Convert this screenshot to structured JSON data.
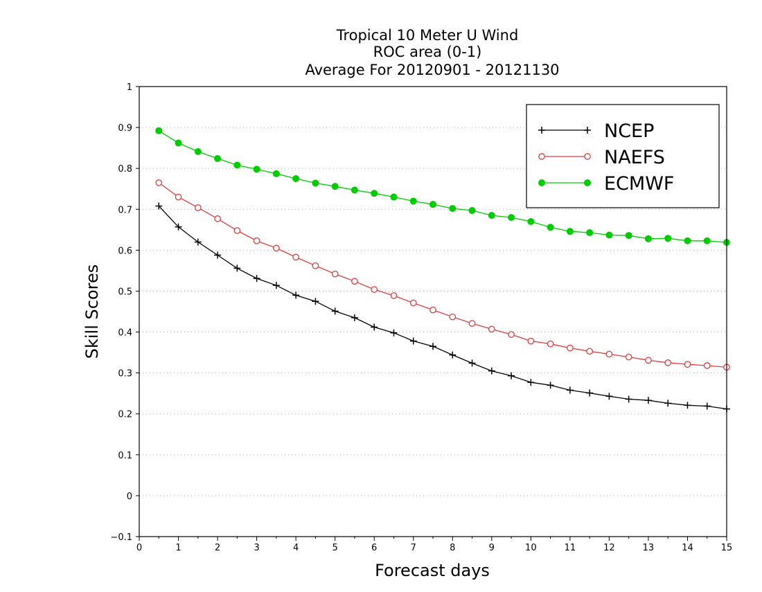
{
  "chart_data": {
    "type": "line",
    "title": [
      "Tropical 10 Meter U Wind",
      "ROC area (0-1)",
      "Average For 20120901 - 20121130"
    ],
    "xlabel": "Forecast days",
    "ylabel": "Skill Scores",
    "xlim": [
      0,
      15
    ],
    "ylim": [
      -0.1,
      1
    ],
    "xticks": [
      "0",
      "1",
      "2",
      "3",
      "4",
      "5",
      "6",
      "7",
      "8",
      "9",
      "10",
      "11",
      "12",
      "13",
      "14",
      "15"
    ],
    "yticks": [
      "−0.1",
      "0",
      "0.1",
      "0.2",
      "0.3",
      "0.4",
      "0.5",
      "0.6",
      "0.7",
      "0.8",
      "0.9",
      "1"
    ],
    "grid": "horizontal dotted",
    "legend_position": "top-right",
    "x": [
      0.5,
      1,
      1.5,
      2,
      2.5,
      3,
      3.5,
      4,
      4.5,
      5,
      5.5,
      6,
      6.5,
      7,
      7.5,
      8,
      8.5,
      9,
      9.5,
      10,
      10.5,
      11,
      11.5,
      12,
      12.5,
      13,
      13.5,
      14,
      14.5,
      15
    ],
    "series": [
      {
        "name": "NCEP",
        "color": "#000000",
        "marker": "plus",
        "values": [
          0.708,
          0.657,
          0.62,
          0.588,
          0.556,
          0.531,
          0.514,
          0.49,
          0.475,
          0.451,
          0.435,
          0.412,
          0.398,
          0.378,
          0.365,
          0.344,
          0.324,
          0.305,
          0.293,
          0.277,
          0.27,
          0.258,
          0.251,
          0.243,
          0.236,
          0.233,
          0.226,
          0.221,
          0.219,
          0.212
        ]
      },
      {
        "name": "NAEFS",
        "color": "#e03c3c",
        "marker": "open-circle",
        "values": [
          0.765,
          0.73,
          0.704,
          0.677,
          0.648,
          0.623,
          0.605,
          0.583,
          0.562,
          0.542,
          0.524,
          0.504,
          0.489,
          0.471,
          0.454,
          0.437,
          0.421,
          0.407,
          0.394,
          0.378,
          0.371,
          0.361,
          0.353,
          0.346,
          0.339,
          0.331,
          0.325,
          0.321,
          0.318,
          0.314
        ]
      },
      {
        "name": "ECMWF",
        "color": "#00cc00",
        "marker": "filled-circle",
        "values": [
          0.892,
          0.862,
          0.841,
          0.824,
          0.808,
          0.798,
          0.787,
          0.775,
          0.764,
          0.756,
          0.747,
          0.739,
          0.73,
          0.72,
          0.712,
          0.702,
          0.697,
          0.685,
          0.68,
          0.67,
          0.656,
          0.646,
          0.643,
          0.637,
          0.636,
          0.628,
          0.629,
          0.623,
          0.623,
          0.619
        ]
      }
    ]
  }
}
